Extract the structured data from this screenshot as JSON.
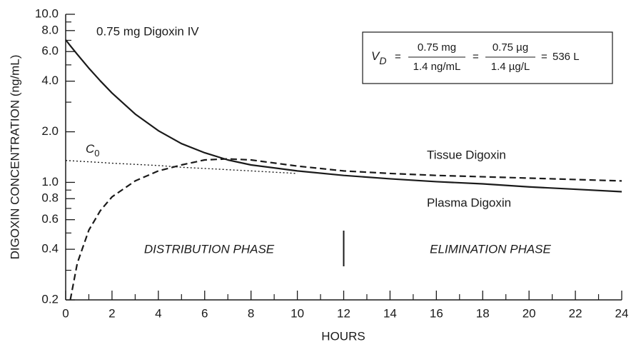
{
  "chart_data": {
    "type": "line",
    "title": "0.75 mg Digoxin IV",
    "xlabel": "HOURS",
    "ylabel": "DIGOXIN CONCENTRATION (ng/mL)",
    "ylog": true,
    "xlim": [
      0,
      24
    ],
    "ylim": [
      0.2,
      10
    ],
    "xticks": [
      0,
      2,
      4,
      6,
      8,
      10,
      12,
      14,
      16,
      18,
      20,
      22,
      24
    ],
    "xminor": [
      1,
      3,
      5,
      7,
      9,
      11,
      13,
      15,
      17,
      19,
      21,
      23
    ],
    "yticks": [
      0.2,
      0.4,
      0.6,
      0.8,
      {
        "value": 1,
        "label": "1.0"
      },
      {
        "value": 2,
        "label": "2.0"
      },
      {
        "value": 4,
        "label": "4.0"
      },
      {
        "value": 6,
        "label": "6.0"
      },
      {
        "value": 8,
        "label": "8.0"
      },
      {
        "value": 10,
        "label": "10.0"
      }
    ],
    "yminor": [
      0.3,
      0.5,
      0.7,
      0.9,
      3,
      5,
      7,
      9
    ],
    "x": [
      0,
      0.2,
      0.5,
      1,
      1.5,
      2,
      3,
      4,
      5,
      6,
      7,
      8,
      10,
      12,
      14,
      16,
      18,
      20,
      22,
      24
    ],
    "series": [
      {
        "name": "Plasma Digoxin",
        "color": "#1a1a1a",
        "style": "solid",
        "values": [
          7.05,
          6.5,
          5.78,
          4.78,
          4.01,
          3.4,
          2.55,
          2.03,
          1.7,
          1.5,
          1.36,
          1.27,
          1.17,
          1.1,
          1.05,
          1.01,
          0.98,
          0.94,
          0.91,
          0.88
        ]
      },
      {
        "name": "Tissue Digoxin",
        "color": "#1a1a1a",
        "style": "dashed",
        "values": [
          null,
          0.2,
          0.33,
          0.52,
          0.68,
          0.82,
          1.02,
          1.17,
          1.27,
          1.36,
          1.38,
          1.36,
          1.25,
          1.17,
          1.13,
          1.1,
          1.08,
          1.06,
          1.04,
          1.02
        ]
      },
      {
        "color": "#1a1a1a",
        "style": "dotted",
        "values": [
          1.35,
          1.345,
          1.338,
          1.326,
          1.314,
          1.3,
          1.28,
          1.26,
          1.23,
          1.21,
          1.19,
          1.17,
          1.13,
          null,
          null,
          null,
          null,
          null,
          null,
          null
        ]
      }
    ],
    "c0_label": {
      "text": "C",
      "sub": "0"
    },
    "phases": [
      "DISTRIBUTION PHASE",
      "ELIMINATION PHASE"
    ],
    "phase_boundary": 12,
    "equation": {
      "lhs": "V",
      "lhs_sub": "D",
      "fractions": [
        {
          "num": "0.75 mg",
          "den": "1.4 ng/mL"
        },
        {
          "num": "0.75 µg",
          "den": "1.4 µg/L"
        }
      ],
      "result": "536 L"
    }
  }
}
